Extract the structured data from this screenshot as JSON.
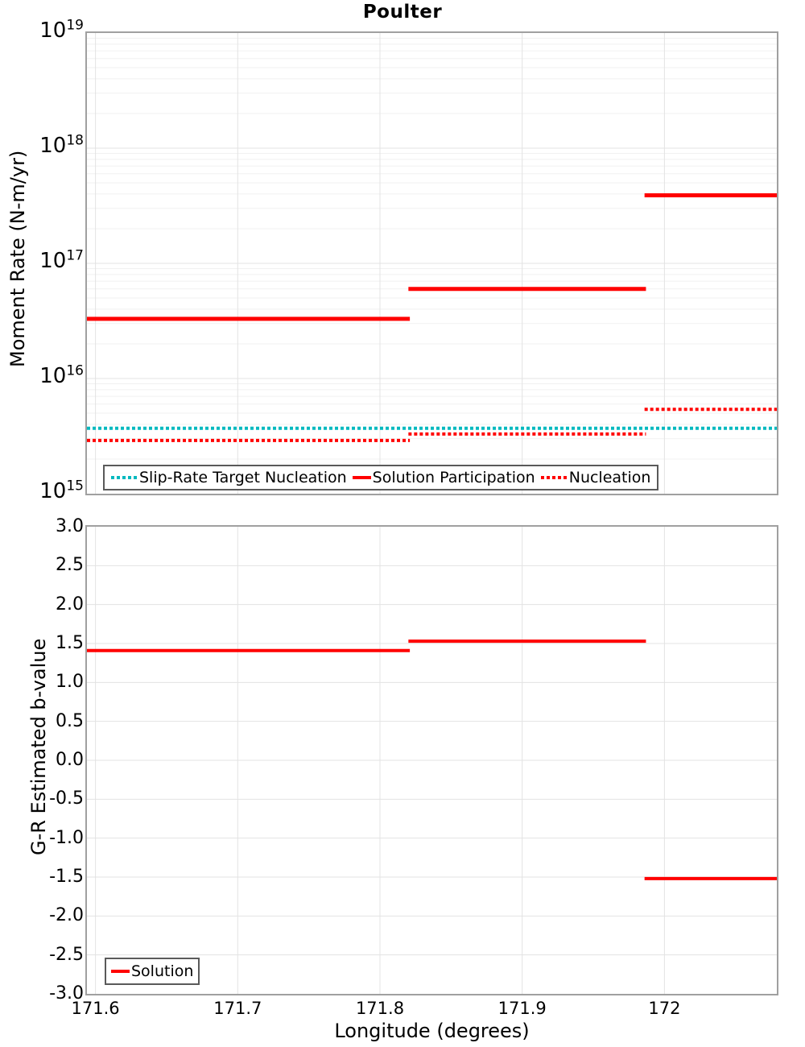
{
  "figure_title": "Poulter",
  "chart_data": [
    {
      "type": "line",
      "title": "Poulter",
      "ylabel": "Moment Rate (N-m/yr)",
      "yscale": "log",
      "ylim": [
        1000000000000000.0,
        1e+19
      ],
      "xlim": [
        171.594,
        172.079
      ],
      "grid": true,
      "legend_position": "lower-center-inside",
      "ytick_base": "10",
      "ytick_exponents": [
        19,
        18,
        17,
        16,
        15
      ],
      "xticks": [
        171.6,
        171.7,
        171.8,
        171.9,
        172
      ],
      "xticklabels": [
        "171.6",
        "171.7",
        "171.8",
        "171.9",
        "172"
      ],
      "series": [
        {
          "name": "Slip-Rate Target Nucleation",
          "color": "#00b9bf",
          "style": "dotted",
          "width": 4,
          "segments": [
            {
              "x": [
                171.594,
                172.079
              ],
              "y": 3700000000000000.0
            }
          ]
        },
        {
          "name": "Solution Participation",
          "color": "#ff0000",
          "style": "solid",
          "width": 5,
          "segments": [
            {
              "x": [
                171.594,
                171.821
              ],
              "y": 3.3e+16
            },
            {
              "x": [
                171.82,
                171.987
              ],
              "y": 6e+16
            },
            {
              "x": [
                171.986,
                172.079
              ],
              "y": 3.9e+17
            }
          ]
        },
        {
          "name": "Nucleation",
          "color": "#ff0000",
          "style": "dotted",
          "width": 4,
          "segments": [
            {
              "x": [
                171.594,
                171.821
              ],
              "y": 2900000000000000.0
            },
            {
              "x": [
                171.82,
                171.987
              ],
              "y": 3300000000000000.0
            },
            {
              "x": [
                171.986,
                172.079
              ],
              "y": 5400000000000000.0
            }
          ]
        }
      ]
    },
    {
      "type": "line",
      "ylabel": "G-R Estimated b-value",
      "xlabel": "Longitude (degrees)",
      "ylim": [
        -3,
        3
      ],
      "xlim": [
        171.594,
        172.079
      ],
      "grid": true,
      "legend_position": "lower-left-inside",
      "yticks": [
        3.0,
        2.5,
        2.0,
        1.5,
        1.0,
        0.5,
        0.0,
        -0.5,
        -1.0,
        -1.5,
        -2.0,
        -2.5,
        -3.0
      ],
      "yticklabels": [
        "3.0",
        "2.5",
        "2.0",
        "1.5",
        "1.0",
        "0.5",
        "0.0",
        "-0.5",
        "-1.0",
        "-1.5",
        "-2.0",
        "-2.5",
        "-3.0"
      ],
      "xticks": [
        171.6,
        171.7,
        171.8,
        171.9,
        172
      ],
      "xticklabels": [
        "171.6",
        "171.7",
        "171.8",
        "171.9",
        "172"
      ],
      "series": [
        {
          "name": "Solution",
          "color": "#ff0000",
          "style": "solid",
          "width": 4,
          "segments": [
            {
              "x": [
                171.594,
                171.821
              ],
              "y": 1.41
            },
            {
              "x": [
                171.82,
                171.987
              ],
              "y": 1.53
            },
            {
              "x": [
                171.986,
                172.079
              ],
              "y": -1.52
            }
          ]
        }
      ]
    }
  ]
}
